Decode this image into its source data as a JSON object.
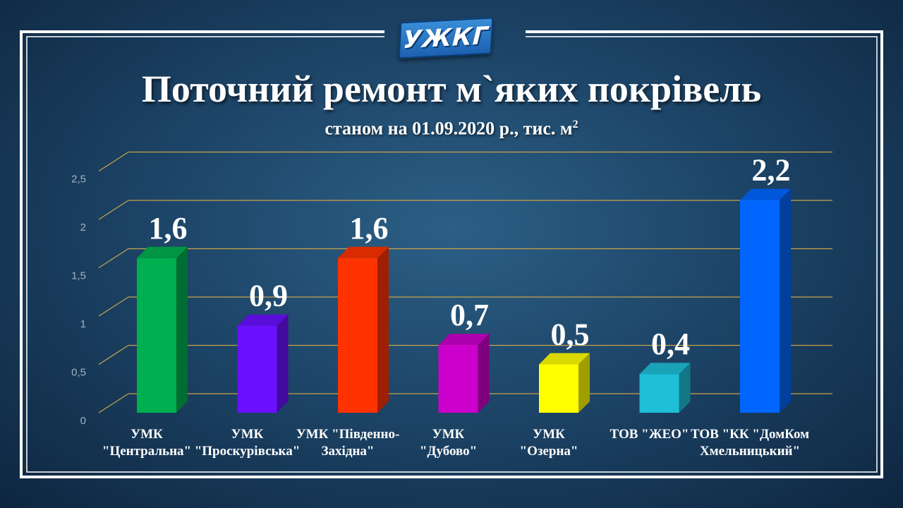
{
  "logo": {
    "text": "УЖКГ"
  },
  "title": "Поточний ремонт м`яких покрівель",
  "subtitle": {
    "text": "станом на 01.09.2020 р., тис. м",
    "superscript": "2"
  },
  "chart_data": {
    "type": "bar",
    "title": "Поточний ремонт м`яких покрівель",
    "subtitle": "станом на 01.09.2020 р., тис. м2",
    "categories": [
      [
        "УМК",
        "\"Центральна\""
      ],
      [
        "УМК",
        "\"Проскурівська\""
      ],
      [
        "УМК \"Південно-",
        "Західна\""
      ],
      [
        "УМК",
        "\"Дубово\""
      ],
      [
        "УМК",
        "\"Озерна\""
      ],
      [
        "ТОВ \"ЖЕО\""
      ],
      [
        "ТОВ \"КК \"ДомКом",
        "Хмельницький\""
      ]
    ],
    "values": [
      1.6,
      0.9,
      1.6,
      0.7,
      0.5,
      0.4,
      2.2
    ],
    "data_labels": [
      "1,6",
      "0,9",
      "1,6",
      "0,7",
      "0,5",
      "0,4",
      "2,2"
    ],
    "colors": [
      "#00b050",
      "#6a10ff",
      "#ff3300",
      "#cc00cc",
      "#ffff00",
      "#1fbfd8",
      "#0066ff"
    ],
    "yticks": [
      {
        "value": 0,
        "label": "0"
      },
      {
        "value": 0.5,
        "label": "0,5"
      },
      {
        "value": 1,
        "label": "1"
      },
      {
        "value": 1.5,
        "label": "1,5"
      },
      {
        "value": 2,
        "label": "2"
      },
      {
        "value": 2.5,
        "label": "2,5"
      }
    ],
    "ylim": [
      0,
      2.7
    ],
    "grid": true,
    "gridColor": "#c9a24a",
    "legend": "none"
  }
}
